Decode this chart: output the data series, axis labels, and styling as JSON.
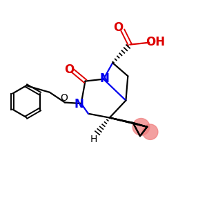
{
  "bg_color": "#ffffff",
  "bond_color": "#000000",
  "n_color": "#0000ee",
  "o_color": "#dd0000",
  "cyclopropane_color": "#f08080",
  "figsize": [
    3.0,
    3.0
  ],
  "dpi": 100,
  "cyclopropane_circles": [
    [
      0.685,
      0.385,
      0.042
    ],
    [
      0.73,
      0.36,
      0.038
    ]
  ]
}
